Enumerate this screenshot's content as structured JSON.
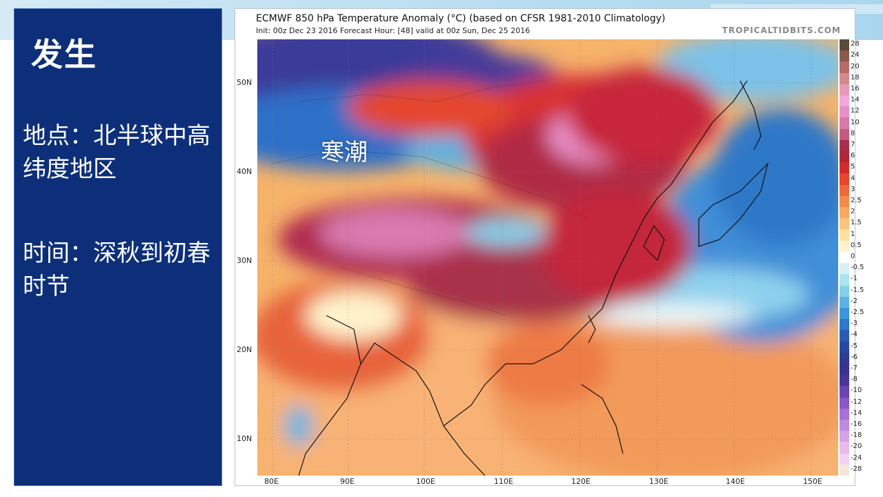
{
  "slide": {
    "title": "发生",
    "location_text": "地点：北半球中高纬度地区",
    "time_text": "时间：深秋到初春时节"
  },
  "map": {
    "title": "ECMWF 850 hPa Temperature Anomaly (°C) (based on CFSR 1981-2010 Climatology)",
    "subtitle": "Init: 00z Dec 23 2016   Forecast Hour: [48]   valid at 00z Sun, Dec 25 2016",
    "brand": "TROPICALTIDBITS.COM",
    "annotation": "寒潮",
    "lat_labels": [
      "50N",
      "40N",
      "30N",
      "20N",
      "10N"
    ],
    "lon_labels": [
      "80E",
      "90E",
      "100E",
      "110E",
      "120E",
      "130E",
      "140E",
      "150E"
    ],
    "colorbar": [
      {
        "label": "28",
        "color": "#5a4a3a"
      },
      {
        "label": "24",
        "color": "#8a5a4a"
      },
      {
        "label": "20",
        "color": "#b86a6a"
      },
      {
        "label": "18",
        "color": "#d48a8a"
      },
      {
        "label": "16",
        "color": "#e89ab8"
      },
      {
        "label": "14",
        "color": "#f2a8d8"
      },
      {
        "label": "12",
        "color": "#e890c8"
      },
      {
        "label": "10",
        "color": "#d97aa8"
      },
      {
        "label": "8",
        "color": "#c45a80"
      },
      {
        "label": "7",
        "color": "#a8304a"
      },
      {
        "label": "6",
        "color": "#b02838"
      },
      {
        "label": "5",
        "color": "#d32b2b"
      },
      {
        "label": "4",
        "color": "#e4472d"
      },
      {
        "label": "3",
        "color": "#ec6a3a"
      },
      {
        "label": "2.5",
        "color": "#f48a4a"
      },
      {
        "label": "2",
        "color": "#f8a860"
      },
      {
        "label": "1.5",
        "color": "#fbc47c"
      },
      {
        "label": "1",
        "color": "#fde0a0"
      },
      {
        "label": "0.5",
        "color": "#fef3cc"
      },
      {
        "label": "0",
        "color": "#ffffff"
      },
      {
        "label": "-0.5",
        "color": "#d6f1f6"
      },
      {
        "label": "-1",
        "color": "#aee3f0"
      },
      {
        "label": "-1.5",
        "color": "#86d0ea"
      },
      {
        "label": "-2",
        "color": "#5bb4e4"
      },
      {
        "label": "-2.5",
        "color": "#3b96dc"
      },
      {
        "label": "-3",
        "color": "#2f78cc"
      },
      {
        "label": "-4",
        "color": "#2a5cb6"
      },
      {
        "label": "-5",
        "color": "#2a48a2"
      },
      {
        "label": "-6",
        "color": "#2e3a94"
      },
      {
        "label": "-7",
        "color": "#3a3290"
      },
      {
        "label": "-8",
        "color": "#4a349a"
      },
      {
        "label": "-10",
        "color": "#6a44b2"
      },
      {
        "label": "-12",
        "color": "#8a56c8"
      },
      {
        "label": "-14",
        "color": "#a870d8"
      },
      {
        "label": "-16",
        "color": "#c08ae0"
      },
      {
        "label": "-18",
        "color": "#d4a4e6"
      },
      {
        "label": "-20",
        "color": "#e6bcec"
      },
      {
        "label": "-24",
        "color": "#f0d2f0"
      },
      {
        "label": "-28",
        "color": "#f6e6d6"
      }
    ]
  }
}
